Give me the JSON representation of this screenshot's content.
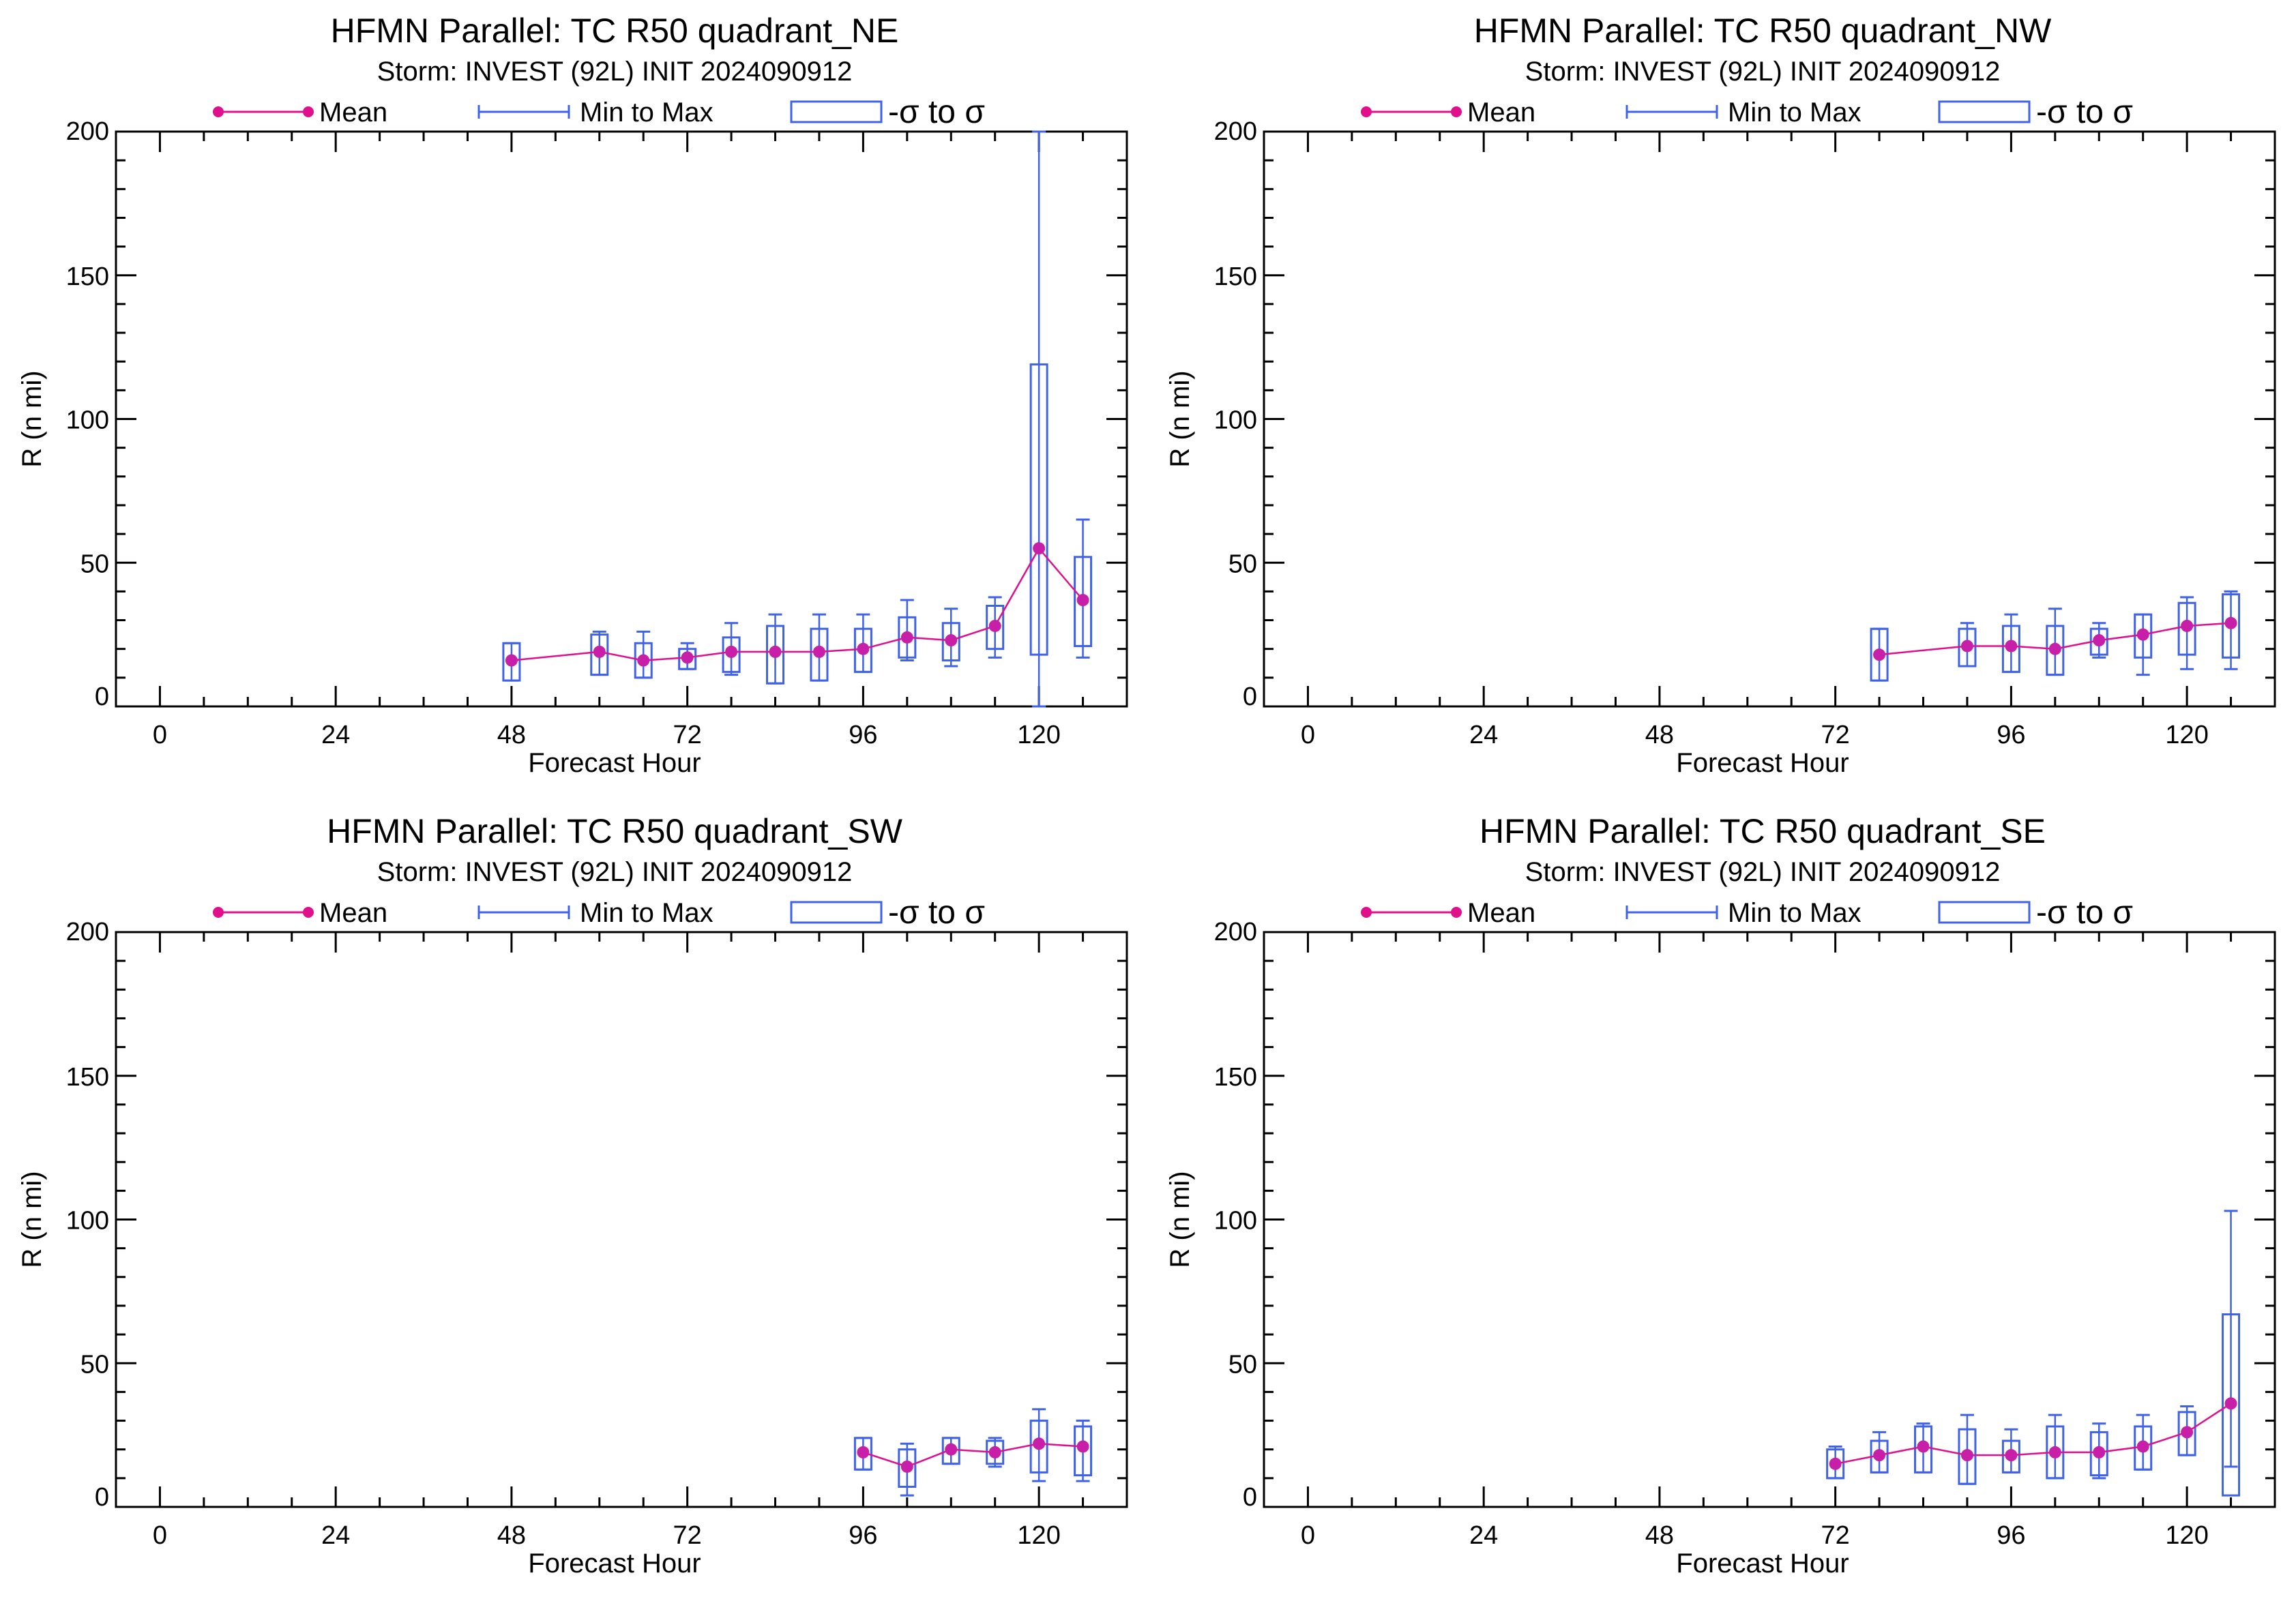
{
  "figure": {
    "storm_line": "Storm: INVEST (92L) INIT 2024090912",
    "legend": {
      "mean_label": "Mean",
      "minmax_label": "Min to Max",
      "sigma_label": "-σ to σ"
    },
    "xlabel": "Forecast Hour",
    "ylabel": "R (n mi)",
    "x_ticks": [
      "0",
      "24",
      "48",
      "72",
      "96",
      "120"
    ],
    "y_ticks": [
      "0",
      "50",
      "100",
      "150",
      "200"
    ],
    "colors": {
      "mean": "#e0108c",
      "marker": "#c81fa8",
      "box": "#3f62e8",
      "axis": "#000000"
    }
  },
  "chart_data": [
    {
      "type": "box-line",
      "title": "HFMN Parallel: TC  R50 quadrant_NE",
      "subtitle": "Storm: INVEST (92L) INIT 2024090912",
      "xlabel": "Forecast Hour",
      "ylabel": "R (n mi)",
      "xlim": [
        -6,
        132
      ],
      "ylim": [
        0,
        200
      ],
      "x_ticks": [
        0,
        24,
        48,
        72,
        96,
        120
      ],
      "y_ticks": [
        0,
        50,
        100,
        150,
        200
      ],
      "legend_position": "top",
      "series": [
        {
          "name": "Mean",
          "points": [
            {
              "x": 48,
              "mean": 16,
              "min": 9,
              "max": 22,
              "sd_low": 9,
              "sd_high": 22
            },
            {
              "x": 60,
              "mean": 19,
              "min": 11,
              "max": 26,
              "sd_low": 11,
              "sd_high": 25
            },
            {
              "x": 66,
              "mean": 16,
              "min": 10,
              "max": 26,
              "sd_low": 10,
              "sd_high": 22
            },
            {
              "x": 72,
              "mean": 17,
              "min": 13,
              "max": 22,
              "sd_low": 13,
              "sd_high": 20
            },
            {
              "x": 78,
              "mean": 19,
              "min": 11,
              "max": 29,
              "sd_low": 12,
              "sd_high": 24
            },
            {
              "x": 84,
              "mean": 19,
              "min": 8,
              "max": 32,
              "sd_low": 8,
              "sd_high": 28
            },
            {
              "x": 90,
              "mean": 19,
              "min": 9,
              "max": 32,
              "sd_low": 9,
              "sd_high": 27
            },
            {
              "x": 96,
              "mean": 20,
              "min": 12,
              "max": 32,
              "sd_low": 12,
              "sd_high": 27
            },
            {
              "x": 102,
              "mean": 24,
              "min": 16,
              "max": 37,
              "sd_low": 17,
              "sd_high": 31
            },
            {
              "x": 108,
              "mean": 23,
              "min": 14,
              "max": 34,
              "sd_low": 16,
              "sd_high": 29
            },
            {
              "x": 114,
              "mean": 28,
              "min": 17,
              "max": 38,
              "sd_low": 20,
              "sd_high": 35
            },
            {
              "x": 120,
              "mean": 55,
              "min": 0,
              "max": 200,
              "sd_low": 18,
              "sd_high": 119
            },
            {
              "x": 126,
              "mean": 37,
              "min": 17,
              "max": 65,
              "sd_low": 21,
              "sd_high": 52
            }
          ]
        }
      ]
    },
    {
      "type": "box-line",
      "title": "HFMN Parallel: TC  R50 quadrant_NW",
      "subtitle": "Storm: INVEST (92L) INIT 2024090912",
      "xlabel": "Forecast Hour",
      "ylabel": "R (n mi)",
      "xlim": [
        -6,
        132
      ],
      "ylim": [
        0,
        200
      ],
      "x_ticks": [
        0,
        24,
        48,
        72,
        96,
        120
      ],
      "y_ticks": [
        0,
        50,
        100,
        150,
        200
      ],
      "legend_position": "top",
      "series": [
        {
          "name": "Mean",
          "points": [
            {
              "x": 78,
              "mean": 18,
              "min": 9,
              "max": 27,
              "sd_low": 9,
              "sd_high": 27
            },
            {
              "x": 90,
              "mean": 21,
              "min": 14,
              "max": 29,
              "sd_low": 14,
              "sd_high": 27
            },
            {
              "x": 96,
              "mean": 21,
              "min": 12,
              "max": 32,
              "sd_low": 12,
              "sd_high": 28
            },
            {
              "x": 102,
              "mean": 20,
              "min": 11,
              "max": 34,
              "sd_low": 11,
              "sd_high": 28
            },
            {
              "x": 108,
              "mean": 23,
              "min": 17,
              "max": 29,
              "sd_low": 18,
              "sd_high": 27
            },
            {
              "x": 114,
              "mean": 25,
              "min": 11,
              "max": 32,
              "sd_low": 17,
              "sd_high": 32
            },
            {
              "x": 120,
              "mean": 28,
              "min": 13,
              "max": 38,
              "sd_low": 18,
              "sd_high": 36
            },
            {
              "x": 126,
              "mean": 29,
              "min": 13,
              "max": 40,
              "sd_low": 17,
              "sd_high": 39
            }
          ]
        }
      ]
    },
    {
      "type": "box-line",
      "title": "HFMN Parallel: TC  R50 quadrant_SW",
      "subtitle": "Storm: INVEST (92L) INIT 2024090912",
      "xlabel": "Forecast Hour",
      "ylabel": "R (n mi)",
      "xlim": [
        -6,
        132
      ],
      "ylim": [
        0,
        200
      ],
      "x_ticks": [
        0,
        24,
        48,
        72,
        96,
        120
      ],
      "y_ticks": [
        0,
        50,
        100,
        150,
        200
      ],
      "legend_position": "top",
      "series": [
        {
          "name": "Mean",
          "points": [
            {
              "x": 96,
              "mean": 19,
              "min": 13,
              "max": 24,
              "sd_low": 13,
              "sd_high": 24
            },
            {
              "x": 102,
              "mean": 14,
              "min": 4,
              "max": 22,
              "sd_low": 7,
              "sd_high": 20
            },
            {
              "x": 108,
              "mean": 20,
              "min": 15,
              "max": 24,
              "sd_low": 15,
              "sd_high": 24
            },
            {
              "x": 114,
              "mean": 19,
              "min": 14,
              "max": 24,
              "sd_low": 15,
              "sd_high": 23
            },
            {
              "x": 120,
              "mean": 22,
              "min": 9,
              "max": 34,
              "sd_low": 12,
              "sd_high": 30
            },
            {
              "x": 126,
              "mean": 21,
              "min": 9,
              "max": 30,
              "sd_low": 11,
              "sd_high": 28
            }
          ]
        }
      ]
    },
    {
      "type": "box-line",
      "title": "HFMN Parallel: TC  R50 quadrant_SE",
      "subtitle": "Storm: INVEST (92L) INIT 2024090912",
      "xlabel": "Forecast Hour",
      "ylabel": "R (n mi)",
      "xlim": [
        -6,
        132
      ],
      "ylim": [
        0,
        200
      ],
      "x_ticks": [
        0,
        24,
        48,
        72,
        96,
        120
      ],
      "y_ticks": [
        0,
        50,
        100,
        150,
        200
      ],
      "legend_position": "top",
      "series": [
        {
          "name": "Mean",
          "points": [
            {
              "x": 72,
              "mean": 15,
              "min": 10,
              "max": 21,
              "sd_low": 10,
              "sd_high": 20
            },
            {
              "x": 78,
              "mean": 18,
              "min": 12,
              "max": 26,
              "sd_low": 12,
              "sd_high": 23
            },
            {
              "x": 84,
              "mean": 21,
              "min": 12,
              "max": 29,
              "sd_low": 12,
              "sd_high": 28
            },
            {
              "x": 90,
              "mean": 18,
              "min": 8,
              "max": 32,
              "sd_low": 8,
              "sd_high": 27
            },
            {
              "x": 96,
              "mean": 18,
              "min": 12,
              "max": 27,
              "sd_low": 12,
              "sd_high": 23
            },
            {
              "x": 102,
              "mean": 19,
              "min": 10,
              "max": 32,
              "sd_low": 10,
              "sd_high": 28
            },
            {
              "x": 108,
              "mean": 19,
              "min": 10,
              "max": 29,
              "sd_low": 11,
              "sd_high": 26
            },
            {
              "x": 114,
              "mean": 21,
              "min": 13,
              "max": 32,
              "sd_low": 13,
              "sd_high": 28
            },
            {
              "x": 120,
              "mean": 26,
              "min": 18,
              "max": 35,
              "sd_low": 18,
              "sd_high": 33
            },
            {
              "x": 126,
              "mean": 36,
              "min": 14,
              "max": 103,
              "sd_low": 4,
              "sd_high": 67
            }
          ]
        }
      ]
    }
  ]
}
